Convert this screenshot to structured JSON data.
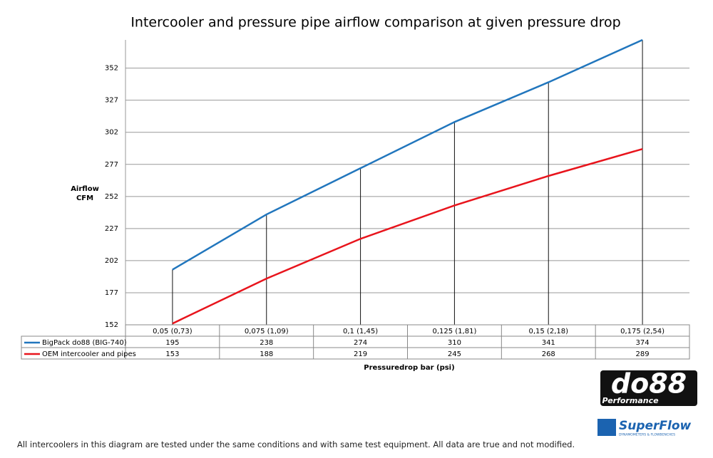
{
  "chart_data": {
    "type": "line",
    "title": "Intercooler and pressure pipe airflow comparison at given pressure drop",
    "y_label": "Airflow CFM",
    "x_label": "Pressuredrop bar (psi)",
    "categories": [
      "0,05 (0,73)",
      "0,075 (1,09)",
      "0,1 (1,45)",
      "0,125 (1,81)",
      "0,15 (2,18)",
      "0,175 (2,54)"
    ],
    "series": [
      {
        "name": "BigPack do88 (BIG-740)",
        "color": "#2176bd",
        "values": [
          195,
          238,
          274,
          310,
          341,
          374
        ]
      },
      {
        "name": "OEM intercooler and pipes",
        "color": "#e8141c",
        "values": [
          153,
          188,
          219,
          245,
          268,
          289
        ]
      }
    ],
    "ylim": [
      152,
      374
    ],
    "yticks": [
      152,
      177,
      202,
      227,
      252,
      277,
      302,
      327,
      352
    ],
    "grid": true,
    "drop_lines": true
  },
  "footnote": "All intercoolers in this diagram are tested under the same conditions and with same test equipment. All data are true and not modified.",
  "logos": {
    "brand": "do88",
    "brand_sub": "Performance",
    "partner": "SuperFlow",
    "partner_sub": "DYNAMOMETERS & FLOWBENCHES"
  }
}
